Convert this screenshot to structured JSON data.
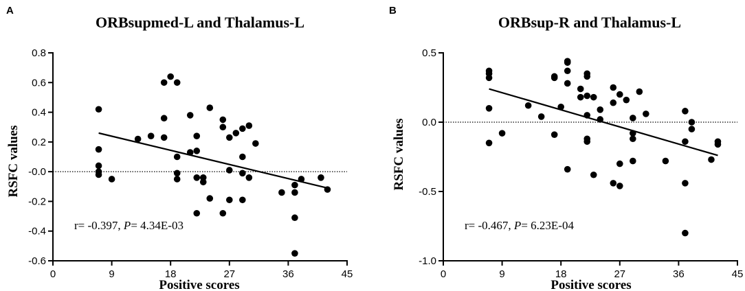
{
  "chart_data": [
    {
      "type": "scatter",
      "panel_label": "A",
      "title": "ORBsupmed-L and Thalamus-L",
      "xlabel": "Positive scores",
      "ylabel": "RSFC values",
      "xlim": [
        0,
        45
      ],
      "ylim": [
        -0.6,
        0.8
      ],
      "xticks": [
        0,
        9,
        18,
        27,
        36,
        45
      ],
      "xtick_labels": [
        "0",
        "9",
        "18",
        "27",
        "36",
        "45"
      ],
      "yticks": [
        -0.6,
        -0.4,
        -0.2,
        0.0,
        0.2,
        0.4,
        0.6,
        0.8
      ],
      "ytick_labels": [
        "-0.6",
        "-0.4",
        "-0.2",
        "-0.0",
        "0.2",
        "0.4",
        "0.6",
        "0.8"
      ],
      "reference_line_y": 0,
      "regression": {
        "x": [
          7,
          42
        ],
        "y": [
          0.26,
          -0.11
        ]
      },
      "annotation": {
        "r_text": "r= -0.397, ",
        "p_symbol": "P",
        "p_text": "= 4.34E-03"
      },
      "points": [
        [
          7,
          0.42
        ],
        [
          7,
          0.15
        ],
        [
          7,
          0.04
        ],
        [
          7,
          0.0
        ],
        [
          7,
          -0.02
        ],
        [
          9,
          -0.05
        ],
        [
          13,
          0.22
        ],
        [
          15,
          0.24
        ],
        [
          17,
          0.6
        ],
        [
          17,
          0.36
        ],
        [
          17,
          0.23
        ],
        [
          18,
          0.64
        ],
        [
          19,
          0.6
        ],
        [
          19,
          0.1
        ],
        [
          19,
          -0.01
        ],
        [
          19,
          -0.05
        ],
        [
          21,
          0.38
        ],
        [
          21,
          0.13
        ],
        [
          22,
          0.24
        ],
        [
          22,
          0.14
        ],
        [
          22,
          -0.04
        ],
        [
          22,
          -0.28
        ],
        [
          23,
          -0.04
        ],
        [
          23,
          -0.07
        ],
        [
          24,
          0.43
        ],
        [
          24,
          -0.18
        ],
        [
          26,
          0.35
        ],
        [
          26,
          0.3
        ],
        [
          26,
          -0.28
        ],
        [
          27,
          0.23
        ],
        [
          27,
          0.01
        ],
        [
          27,
          -0.19
        ],
        [
          28,
          0.26
        ],
        [
          29,
          0.29
        ],
        [
          29,
          0.1
        ],
        [
          29,
          -0.01
        ],
        [
          29,
          -0.19
        ],
        [
          30,
          0.31
        ],
        [
          30,
          -0.04
        ],
        [
          31,
          0.19
        ],
        [
          35,
          -0.14
        ],
        [
          37,
          -0.09
        ],
        [
          37,
          -0.14
        ],
        [
          37,
          -0.31
        ],
        [
          37,
          -0.55
        ],
        [
          38,
          -0.05
        ],
        [
          41,
          -0.04
        ],
        [
          42,
          -0.12
        ]
      ]
    },
    {
      "type": "scatter",
      "panel_label": "B",
      "title": "ORBsup-R and Thalamus-L",
      "xlabel": "Positive scores",
      "ylabel": "RSFC values",
      "xlim": [
        0,
        45
      ],
      "ylim": [
        -1.0,
        0.5
      ],
      "xticks": [
        0,
        9,
        18,
        27,
        36,
        45
      ],
      "xtick_labels": [
        "0",
        "9",
        "18",
        "27",
        "36",
        "45"
      ],
      "yticks": [
        -1.0,
        -0.5,
        0.0,
        0.5
      ],
      "ytick_labels": [
        "-1.0",
        "-0.5",
        "0.0",
        "0.5"
      ],
      "reference_line_y": 0,
      "regression": {
        "x": [
          7,
          42
        ],
        "y": [
          0.24,
          -0.24
        ]
      },
      "annotation": {
        "r_text": "r= -0.467, ",
        "p_symbol": "P",
        "p_text": "= 6.23E-04"
      },
      "points": [
        [
          7,
          0.37
        ],
        [
          7,
          0.35
        ],
        [
          7,
          0.32
        ],
        [
          7,
          0.1
        ],
        [
          7,
          -0.15
        ],
        [
          9,
          -0.08
        ],
        [
          13,
          0.12
        ],
        [
          15,
          0.04
        ],
        [
          17,
          0.33
        ],
        [
          17,
          0.32
        ],
        [
          17,
          -0.09
        ],
        [
          18,
          0.11
        ],
        [
          19,
          0.44
        ],
        [
          19,
          0.43
        ],
        [
          19,
          0.37
        ],
        [
          19,
          0.28
        ],
        [
          19,
          -0.34
        ],
        [
          21,
          0.24
        ],
        [
          21,
          0.18
        ],
        [
          22,
          0.35
        ],
        [
          22,
          0.33
        ],
        [
          22,
          0.19
        ],
        [
          22,
          0.05
        ],
        [
          22,
          -0.12
        ],
        [
          22,
          -0.14
        ],
        [
          23,
          0.18
        ],
        [
          23,
          -0.38
        ],
        [
          24,
          0.09
        ],
        [
          24,
          0.02
        ],
        [
          26,
          0.25
        ],
        [
          26,
          0.14
        ],
        [
          26,
          -0.44
        ],
        [
          27,
          0.2
        ],
        [
          27,
          -0.3
        ],
        [
          27,
          -0.46
        ],
        [
          28,
          0.16
        ],
        [
          29,
          0.03
        ],
        [
          29,
          -0.08
        ],
        [
          29,
          -0.12
        ],
        [
          29,
          -0.28
        ],
        [
          30,
          0.22
        ],
        [
          31,
          0.06
        ],
        [
          34,
          -0.28
        ],
        [
          37,
          0.08
        ],
        [
          37,
          -0.14
        ],
        [
          37,
          -0.44
        ],
        [
          37,
          -0.8
        ],
        [
          38,
          0.0
        ],
        [
          38,
          -0.05
        ],
        [
          41,
          -0.27
        ],
        [
          42,
          -0.14
        ],
        [
          42,
          -0.16
        ]
      ]
    }
  ]
}
